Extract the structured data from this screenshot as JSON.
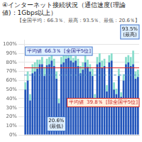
{
  "chart_data": {
    "type": "bar",
    "title": "④インターネット接続状況（通信速度(理論値)：1Gbps以上）",
    "subtitle": "【全国平均：66.3％、最高：93.5％、最低：20.6％】",
    "categories": [
      null,
      null,
      null,
      null,
      null,
      null,
      null,
      null,
      null,
      null,
      null,
      null,
      null,
      null,
      null,
      null,
      null,
      null,
      null,
      null,
      null,
      null,
      null,
      null,
      null,
      null,
      null,
      null,
      null,
      null,
      null,
      null,
      null,
      null,
      null,
      null,
      null,
      null,
      null,
      null,
      null,
      null,
      null,
      null,
      null,
      null,
      null,
      null
    ],
    "series": [
      {
        "color": "#2255bb",
        "values": [
          50,
          60,
          38,
          68,
          70,
          73,
          78,
          78,
          65,
          77,
          78,
          82,
          76,
          62,
          35,
          78,
          80,
          84,
          85,
          82,
          80,
          82,
          76,
          68,
          72,
          80,
          75,
          70,
          65,
          40,
          78,
          80,
          74,
          76,
          48,
          80,
          82,
          50,
          45,
          65,
          42,
          60,
          78,
          80,
          76,
          78,
          62,
          64
        ]
      },
      {
        "color": "#88ddcc",
        "values": [
          8,
          10,
          7,
          10,
          10,
          10,
          5,
          8,
          10,
          7,
          8,
          8,
          8,
          8,
          5,
          8,
          8,
          8,
          5,
          8,
          5,
          5,
          8,
          8,
          8,
          8,
          8,
          8,
          8,
          5,
          8,
          10,
          8,
          8,
          7,
          8,
          8,
          8,
          6,
          8,
          5,
          7,
          8,
          8,
          10,
          15,
          8,
          8
        ]
      }
    ],
    "stacked": true,
    "ylim": [
      0,
      105
    ],
    "yticks": [
      {
        "value": 0,
        "label": "0%"
      },
      {
        "value": 10,
        "label": "10%"
      },
      {
        "value": 20,
        "label": "20%"
      },
      {
        "value": 30,
        "label": "30%"
      },
      {
        "value": 40,
        "label": "40%"
      },
      {
        "value": 50,
        "label": "50%"
      },
      {
        "value": 60,
        "label": "60%"
      },
      {
        "value": 70,
        "label": "70%"
      },
      {
        "value": 80,
        "label": "80%"
      },
      {
        "value": 90,
        "label": "90%"
      },
      {
        "value": 100,
        "label": "100%"
      }
    ],
    "grid": true,
    "tick_labels": "y",
    "hlines": [
      {
        "value": 74,
        "color": "#dd2222",
        "line_style": "solid"
      },
      {
        "value": 66,
        "color": "#5599cc",
        "line_style": "dashed"
      }
    ],
    "annotations": [
      "平均値  66.3％  [全国平5位]",
      "平均値  39.8％  [除全国平5位]",
      "93.5%\n(最高)",
      "20.6%\n(最低)"
    ]
  }
}
